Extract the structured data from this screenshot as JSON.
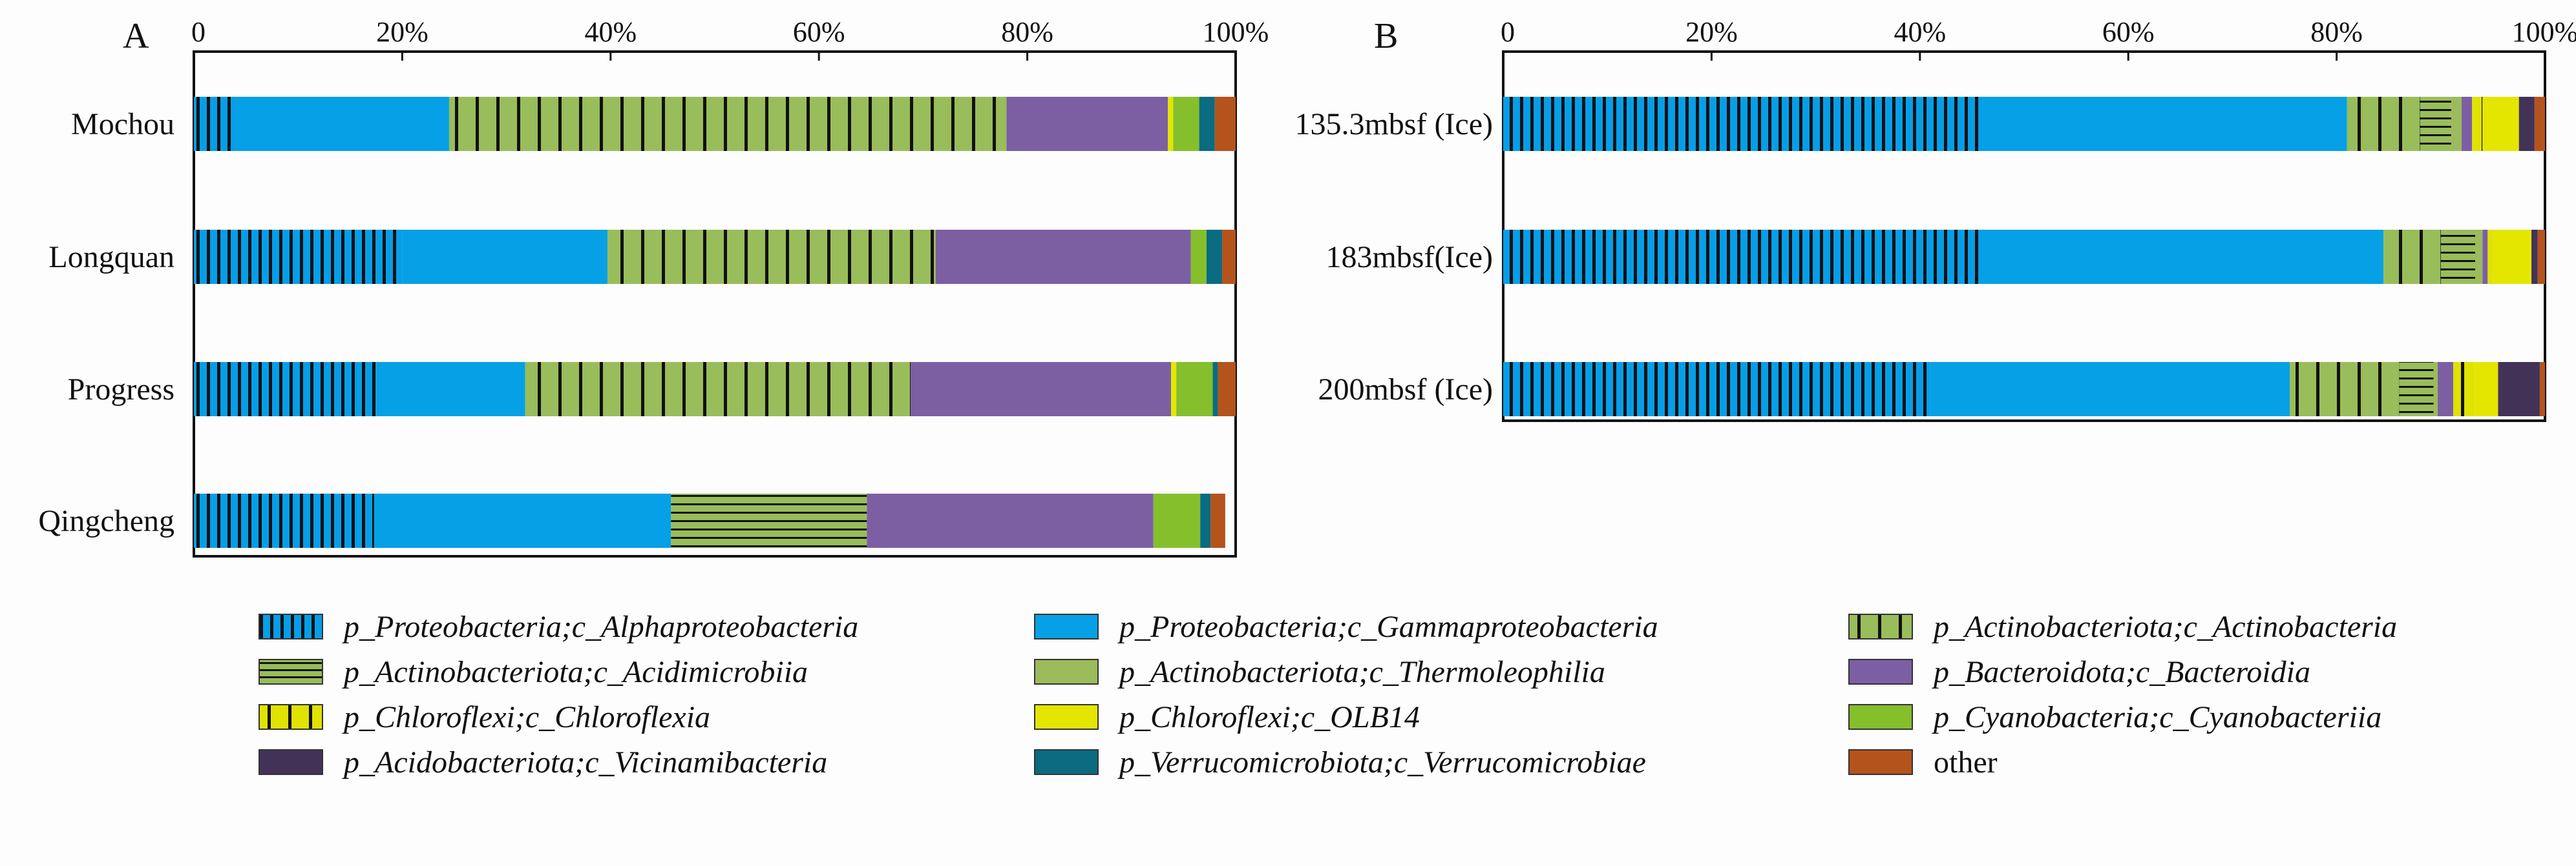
{
  "colors": {
    "alpha": "#069ee8",
    "gamma": "#06a0e6",
    "actinobacteria": "#99bd5a",
    "acidimicrobiia": "#99bd5a",
    "thermoleophilia": "#9cbb5c",
    "bacteroidia": "#7c5fa3",
    "chloroflexia": "#e0e200",
    "olb14": "#e4e600",
    "cyanobacteriia": "#85bf2c",
    "vicinamibacteria": "#433258",
    "verrucomicrobiae": "#0b6b80",
    "other": "#b5531c"
  },
  "legend": [
    {
      "key": "alpha",
      "label": "p_Proteobacteria;c_Alphaproteobacteria",
      "pattern": "vlines"
    },
    {
      "key": "gamma",
      "label": "p_Proteobacteria;c_Gammaproteobacteria",
      "pattern": "none"
    },
    {
      "key": "actinobacteria",
      "label": "p_Actinobacteriota;c_Actinobacteria",
      "pattern": "vlines-wide"
    },
    {
      "key": "acidimicrobiia",
      "label": "p_Actinobacteriota;c_Acidimicrobiia",
      "pattern": "hlines"
    },
    {
      "key": "thermoleophilia",
      "label": "p_Actinobacteriota;c_Thermoleophilia",
      "pattern": "none"
    },
    {
      "key": "bacteroidia",
      "label": "p_Bacteroidota;c_Bacteroidia",
      "pattern": "none"
    },
    {
      "key": "chloroflexia",
      "label": "p_Chloroflexi;c_Chloroflexia",
      "pattern": "vlines-wide"
    },
    {
      "key": "olb14",
      "label": "p_Chloroflexi;c_OLB14",
      "pattern": "none"
    },
    {
      "key": "cyanobacteriia",
      "label": "p_Cyanobacteria;c_Cyanobacteriia",
      "pattern": "none"
    },
    {
      "key": "vicinamibacteria",
      "label": "p_Acidobacteriota;c_Vicinamibacteria",
      "pattern": "none"
    },
    {
      "key": "verrucomicrobiae",
      "label": "p_Verrucomicrobiota;c_Verrucomicrobiae",
      "pattern": "none"
    },
    {
      "key": "other",
      "label": "other",
      "pattern": "none"
    }
  ],
  "chart_data": [
    {
      "type": "bar",
      "orientation": "horizontal",
      "stacked": true,
      "panel_label": "A",
      "xlim": [
        0,
        100
      ],
      "x_ticks": [
        "0",
        "20%",
        "40%",
        "60%",
        "80%",
        "100%"
      ],
      "categories": [
        "Mochou",
        "Longquan",
        "Progress",
        "Qingcheng"
      ],
      "series": [
        {
          "key": "alpha",
          "name": "p_Proteobacteria;c_Alphaproteobacteria",
          "values": [
            4.0,
            20.0,
            17.5,
            17.3
          ]
        },
        {
          "key": "gamma",
          "name": "p_Proteobacteria;c_Gammaproteobacteria",
          "values": [
            20.5,
            19.7,
            14.3,
            28.5
          ]
        },
        {
          "key": "actinobacteria",
          "name": "p_Actinobacteriota;c_Actinobacteria",
          "values": [
            53.5,
            31.5,
            37.0,
            0
          ]
        },
        {
          "key": "acidimicrobiia",
          "name": "p_Actinobacteriota;c_Acidimicrobiia",
          "values": [
            0,
            0,
            0,
            18.8
          ]
        },
        {
          "key": "thermoleophilia",
          "name": "p_Actinobacteriota;c_Thermoleophilia",
          "values": [
            0,
            0,
            0,
            0
          ]
        },
        {
          "key": "bacteroidia",
          "name": "p_Bacteroidota;c_Bacteroidia",
          "values": [
            15.5,
            24.5,
            25.0,
            27.5
          ]
        },
        {
          "key": "chloroflexia",
          "name": "p_Chloroflexi;c_Chloroflexia",
          "values": [
            0,
            0,
            0,
            0
          ]
        },
        {
          "key": "olb14",
          "name": "p_Chloroflexi;c_OLB14",
          "values": [
            0.5,
            0,
            0.5,
            0
          ]
        },
        {
          "key": "cyanobacteriia",
          "name": "p_Cyanobacteria;c_Cyanobacteriia",
          "values": [
            2.5,
            1.5,
            3.5,
            4.5
          ]
        },
        {
          "key": "vicinamibacteria",
          "name": "p_Acidobacteriota;c_Vicinamibacteria",
          "values": [
            0,
            0,
            0,
            0
          ]
        },
        {
          "key": "verrucomicrobiae",
          "name": "p_Verrucomicrobiota;c_Verrucomicrobiae",
          "values": [
            1.5,
            1.5,
            0.5,
            1.0
          ]
        },
        {
          "key": "other",
          "name": "other",
          "values": [
            2.0,
            1.3,
            1.7,
            1.4
          ]
        }
      ]
    },
    {
      "type": "bar",
      "orientation": "horizontal",
      "stacked": true,
      "panel_label": "B",
      "xlim": [
        0,
        100
      ],
      "x_ticks": [
        "0",
        "20%",
        "40%",
        "60%",
        "80%",
        "100%"
      ],
      "categories": [
        "135.3mbsf (Ice)",
        "183mbsf(Ice)",
        "200mbsf (Ice)"
      ],
      "series": [
        {
          "key": "alpha",
          "name": "p_Proteobacteria;c_Alphaproteobacteria",
          "values": [
            46.0,
            46.0,
            41.0
          ]
        },
        {
          "key": "gamma",
          "name": "p_Proteobacteria;c_Gammaproteobacteria",
          "values": [
            35.0,
            38.5,
            34.5
          ]
        },
        {
          "key": "actinobacteria",
          "name": "p_Actinobacteriota;c_Actinobacteria",
          "values": [
            7.0,
            5.5,
            10.5
          ]
        },
        {
          "key": "acidimicrobiia",
          "name": "p_Actinobacteriota;c_Acidimicrobiia",
          "values": [
            3.0,
            3.3,
            3.3
          ]
        },
        {
          "key": "thermoleophilia",
          "name": "p_Actinobacteriota;c_Thermoleophilia",
          "values": [
            1.0,
            0.7,
            0.4
          ]
        },
        {
          "key": "bacteroidia",
          "name": "p_Bacteroidota;c_Bacteroidia",
          "values": [
            1.0,
            0.5,
            1.5
          ]
        },
        {
          "key": "chloroflexia",
          "name": "p_Chloroflexi;c_Chloroflexia",
          "values": [
            1.0,
            0.5,
            2.0
          ]
        },
        {
          "key": "olb14",
          "name": "p_Chloroflexi;c_OLB14",
          "values": [
            3.5,
            3.7,
            2.3
          ]
        },
        {
          "key": "cyanobacteriia",
          "name": "p_Cyanobacteria;c_Cyanobacteriia",
          "values": [
            0,
            0,
            0
          ]
        },
        {
          "key": "vicinamibacteria",
          "name": "p_Acidobacteriota;c_Vicinamibacteria",
          "values": [
            1.5,
            0.6,
            4.0
          ]
        },
        {
          "key": "verrucomicrobiae",
          "name": "p_Verrucomicrobiota;c_Verrucomicrobiae",
          "values": [
            0,
            0,
            0
          ]
        },
        {
          "key": "other",
          "name": "other",
          "values": [
            1.0,
            0.7,
            0.5
          ]
        }
      ]
    }
  ]
}
